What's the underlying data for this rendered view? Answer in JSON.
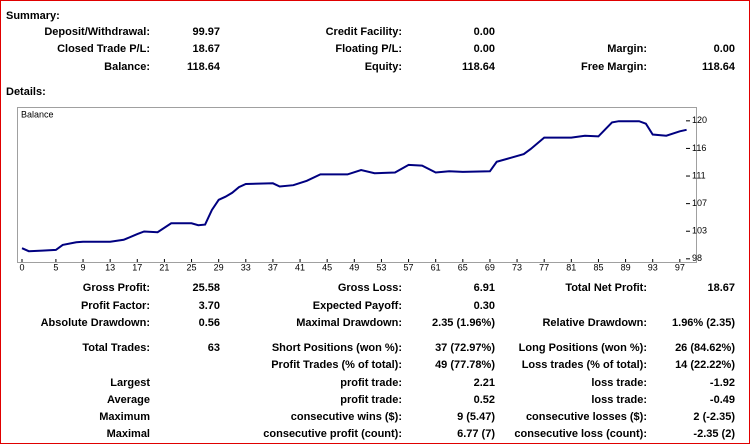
{
  "summary": {
    "title": "Summary:",
    "rows": [
      [
        "Deposit/Withdrawal:",
        "99.97",
        "Credit Facility:",
        "0.00",
        null,
        null
      ],
      [
        "Closed Trade P/L:",
        "18.67",
        "Floating P/L:",
        "0.00",
        "Margin:",
        "0.00"
      ],
      [
        "Balance:",
        "118.64",
        "Equity:",
        "118.64",
        "Free Margin:",
        "118.64"
      ]
    ]
  },
  "details": {
    "title": "Details:",
    "rows": [
      [
        "Gross Profit:",
        "25.58",
        "Gross Loss:",
        "6.91",
        "Total Net Profit:",
        "18.67"
      ],
      [
        "Profit Factor:",
        "3.70",
        "Expected Payoff:",
        "0.30",
        null,
        null
      ],
      [
        "Absolute Drawdown:",
        "0.56",
        "Maximal Drawdown:",
        "2.35 (1.96%)",
        "Relative Drawdown:",
        "1.96% (2.35)"
      ],
      [
        "Total Trades:",
        "63",
        "Short Positions (won %):",
        "37 (72.97%)",
        "Long Positions (won %):",
        "26 (84.62%)"
      ],
      [
        null,
        null,
        "Profit Trades (% of total):",
        "49 (77.78%)",
        "Loss trades (% of total):",
        "14 (22.22%)"
      ],
      [
        "Largest",
        null,
        "profit trade:",
        "2.21",
        "loss trade:",
        "-1.92"
      ],
      [
        "Average",
        null,
        "profit trade:",
        "0.52",
        "loss trade:",
        "-0.49"
      ],
      [
        "Maximum",
        null,
        "consecutive wins ($):",
        "9 (5.47)",
        "consecutive losses ($):",
        "2 (-2.35)"
      ],
      [
        "Maximal",
        null,
        "consecutive profit (count):",
        "6.77 (7)",
        "consecutive loss (count):",
        "-2.35 (2)"
      ]
    ]
  },
  "chart_data": {
    "type": "line",
    "title": "Balance",
    "color": "#000080",
    "x": [
      0,
      1,
      3,
      5,
      6,
      8,
      9,
      10,
      13,
      15,
      17,
      18,
      20,
      22,
      25,
      26,
      27,
      28,
      29,
      30,
      31,
      32,
      33,
      37,
      38,
      40,
      42,
      44,
      48,
      50,
      52,
      55,
      57,
      59,
      61,
      63,
      65,
      69,
      70,
      72,
      74,
      75,
      77,
      81,
      83,
      85,
      87,
      88,
      91,
      92,
      93,
      95,
      97,
      98
    ],
    "values": [
      99.97,
      99.5,
      99.6,
      99.7,
      100.5,
      100.9,
      101.0,
      101.0,
      101.0,
      101.3,
      102.2,
      102.6,
      102.5,
      103.9,
      103.9,
      103.6,
      103.7,
      106.0,
      107.6,
      108.1,
      108.7,
      109.6,
      110.1,
      110.2,
      109.7,
      109.9,
      110.6,
      111.6,
      111.6,
      112.3,
      111.8,
      111.9,
      113.1,
      113.0,
      111.9,
      112.1,
      112.0,
      112.1,
      113.6,
      114.2,
      114.8,
      115.6,
      117.4,
      117.4,
      117.7,
      117.6,
      119.8,
      120.0,
      120.0,
      119.6,
      117.9,
      117.7,
      118.4,
      118.64
    ],
    "xlim": [
      0,
      98.5
    ],
    "ylim": [
      97.8,
      121.6
    ],
    "xticks": [
      0,
      5,
      9,
      13,
      17,
      21,
      25,
      29,
      33,
      37,
      41,
      45,
      49,
      53,
      57,
      61,
      65,
      69,
      73,
      77,
      81,
      85,
      89,
      93,
      97
    ],
    "yticks": [
      {
        "value": 98.3,
        "label": "98"
      },
      {
        "value": 102.65,
        "label": "103"
      },
      {
        "value": 107,
        "label": "107"
      },
      {
        "value": 111.35,
        "label": "111"
      },
      {
        "value": 115.7,
        "label": "116"
      },
      {
        "value": 120.05,
        "label": "120"
      }
    ]
  }
}
